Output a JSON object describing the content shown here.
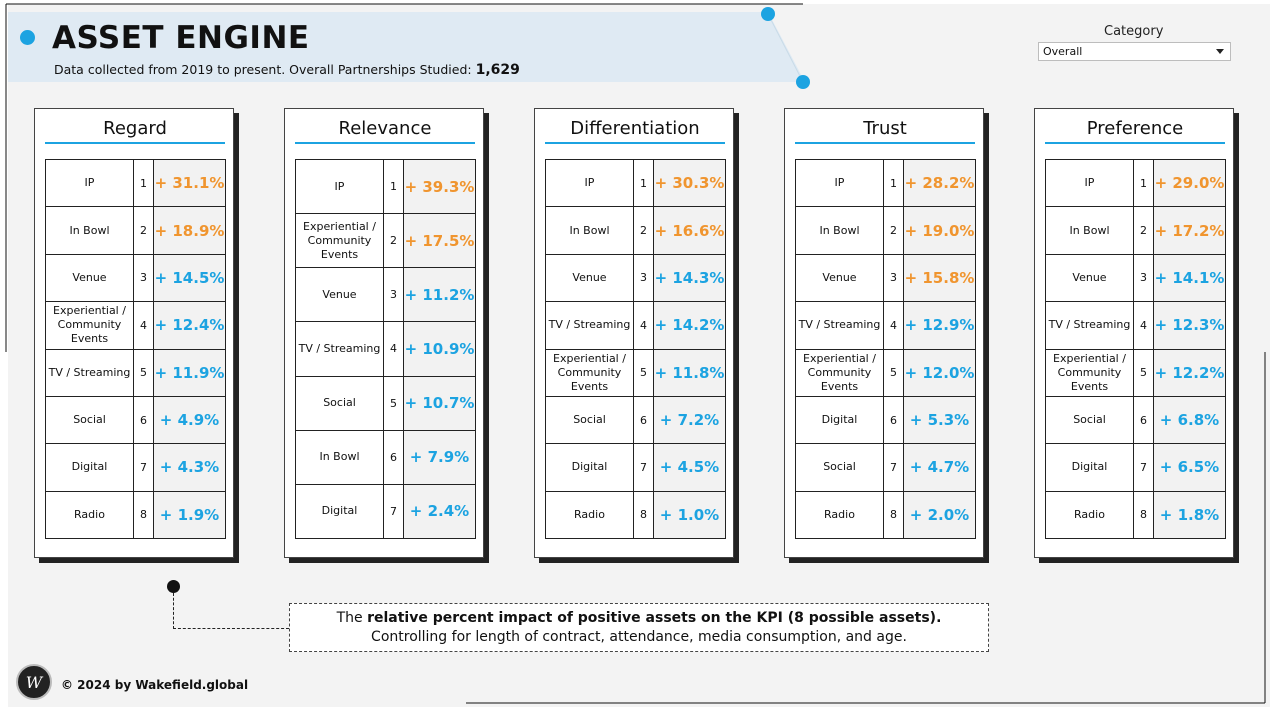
{
  "header": {
    "title": "ASSET ENGINE",
    "subtitle_prefix": "Data collected from 2019 to present. Overall Partnerships Studied:",
    "partnerships_count": "1,629"
  },
  "filter": {
    "label": "Category",
    "selected": "Overall"
  },
  "colors": {
    "accent_blue": "#1ca3e1",
    "accent_orange": "#f0952f"
  },
  "kpis": [
    {
      "title": "Regard",
      "rows": [
        {
          "asset": "IP",
          "rank": "1",
          "impact": "+ 31.1%",
          "tone": "orange"
        },
        {
          "asset": "In Bowl",
          "rank": "2",
          "impact": "+ 18.9%",
          "tone": "orange"
        },
        {
          "asset": "Venue",
          "rank": "3",
          "impact": "+ 14.5%",
          "tone": "blue"
        },
        {
          "asset": "Experiential / Community Events",
          "rank": "4",
          "impact": "+ 12.4%",
          "tone": "blue"
        },
        {
          "asset": "TV / Streaming",
          "rank": "5",
          "impact": "+ 11.9%",
          "tone": "blue"
        },
        {
          "asset": "Social",
          "rank": "6",
          "impact": "+ 4.9%",
          "tone": "blue"
        },
        {
          "asset": "Digital",
          "rank": "7",
          "impact": "+ 4.3%",
          "tone": "blue"
        },
        {
          "asset": "Radio",
          "rank": "8",
          "impact": "+ 1.9%",
          "tone": "blue"
        }
      ]
    },
    {
      "title": "Relevance",
      "rows": [
        {
          "asset": "IP",
          "rank": "1",
          "impact": "+ 39.3%",
          "tone": "orange"
        },
        {
          "asset": "Experiential / Community Events",
          "rank": "2",
          "impact": "+ 17.5%",
          "tone": "orange"
        },
        {
          "asset": "Venue",
          "rank": "3",
          "impact": "+ 11.2%",
          "tone": "blue"
        },
        {
          "asset": "TV / Streaming",
          "rank": "4",
          "impact": "+ 10.9%",
          "tone": "blue"
        },
        {
          "asset": "Social",
          "rank": "5",
          "impact": "+ 10.7%",
          "tone": "blue"
        },
        {
          "asset": "In Bowl",
          "rank": "6",
          "impact": "+ 7.9%",
          "tone": "blue"
        },
        {
          "asset": "Digital",
          "rank": "7",
          "impact": "+ 2.4%",
          "tone": "blue"
        }
      ]
    },
    {
      "title": "Differentiation",
      "rows": [
        {
          "asset": "IP",
          "rank": "1",
          "impact": "+ 30.3%",
          "tone": "orange"
        },
        {
          "asset": "In Bowl",
          "rank": "2",
          "impact": "+ 16.6%",
          "tone": "orange"
        },
        {
          "asset": "Venue",
          "rank": "3",
          "impact": "+ 14.3%",
          "tone": "blue"
        },
        {
          "asset": "TV / Streaming",
          "rank": "4",
          "impact": "+ 14.2%",
          "tone": "blue"
        },
        {
          "asset": "Experiential / Community Events",
          "rank": "5",
          "impact": "+ 11.8%",
          "tone": "blue"
        },
        {
          "asset": "Social",
          "rank": "6",
          "impact": "+ 7.2%",
          "tone": "blue"
        },
        {
          "asset": "Digital",
          "rank": "7",
          "impact": "+ 4.5%",
          "tone": "blue"
        },
        {
          "asset": "Radio",
          "rank": "8",
          "impact": "+ 1.0%",
          "tone": "blue"
        }
      ]
    },
    {
      "title": "Trust",
      "rows": [
        {
          "asset": "IP",
          "rank": "1",
          "impact": "+ 28.2%",
          "tone": "orange"
        },
        {
          "asset": "In Bowl",
          "rank": "2",
          "impact": "+ 19.0%",
          "tone": "orange"
        },
        {
          "asset": "Venue",
          "rank": "3",
          "impact": "+ 15.8%",
          "tone": "orange"
        },
        {
          "asset": "TV / Streaming",
          "rank": "4",
          "impact": "+ 12.9%",
          "tone": "blue"
        },
        {
          "asset": "Experiential / Community Events",
          "rank": "5",
          "impact": "+ 12.0%",
          "tone": "blue"
        },
        {
          "asset": "Digital",
          "rank": "6",
          "impact": "+ 5.3%",
          "tone": "blue"
        },
        {
          "asset": "Social",
          "rank": "7",
          "impact": "+ 4.7%",
          "tone": "blue"
        },
        {
          "asset": "Radio",
          "rank": "8",
          "impact": "+ 2.0%",
          "tone": "blue"
        }
      ]
    },
    {
      "title": "Preference",
      "rows": [
        {
          "asset": "IP",
          "rank": "1",
          "impact": "+ 29.0%",
          "tone": "orange"
        },
        {
          "asset": "In Bowl",
          "rank": "2",
          "impact": "+ 17.2%",
          "tone": "orange"
        },
        {
          "asset": "Venue",
          "rank": "3",
          "impact": "+ 14.1%",
          "tone": "blue"
        },
        {
          "asset": "TV / Streaming",
          "rank": "4",
          "impact": "+ 12.3%",
          "tone": "blue"
        },
        {
          "asset": "Experiential / Community Events",
          "rank": "5",
          "impact": "+ 12.2%",
          "tone": "blue"
        },
        {
          "asset": "Social",
          "rank": "6",
          "impact": "+ 6.8%",
          "tone": "blue"
        },
        {
          "asset": "Digital",
          "rank": "7",
          "impact": "+ 6.5%",
          "tone": "blue"
        },
        {
          "asset": "Radio",
          "rank": "8",
          "impact": "+ 1.8%",
          "tone": "blue"
        }
      ]
    }
  ],
  "footnote": {
    "prefix": "The",
    "bold": "relative percent impact of positive assets on the KPI (8 possible assets).",
    "suffix": "Controlling for length of contract, attendance, media consumption, and age."
  },
  "footer": {
    "logo_letter": "W",
    "copyright": "© 2024 by Wakefield.global"
  }
}
